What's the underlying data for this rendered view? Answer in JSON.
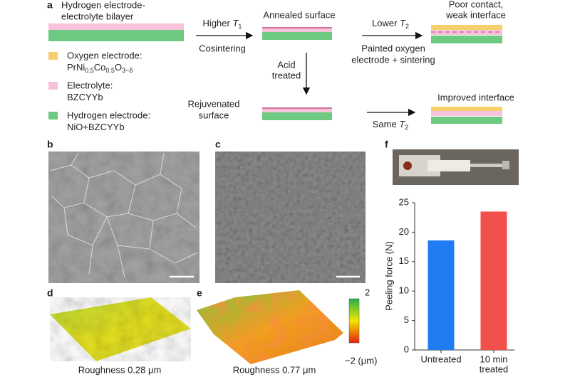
{
  "panel_labels": [
    "a",
    "b",
    "c",
    "d",
    "e",
    "f"
  ],
  "schematic": {
    "bilayer": [
      "Hydrogen electrode-",
      "electrolyte bilayer"
    ],
    "step1": {
      "above": [
        "Higher ",
        "T",
        "1"
      ],
      "below": "Cosintering"
    },
    "annealed": "Annealed surface",
    "step2": {
      "above": [
        "Lower ",
        "T",
        "2"
      ],
      "below": [
        "Painted oxygen",
        "electrode + sintering"
      ]
    },
    "poor": [
      "Poor contact,",
      "weak interface"
    ],
    "acid": [
      "Acid",
      "treated"
    ],
    "rejuvenated": [
      "Rejuvenated",
      "surface"
    ],
    "step3": [
      "Same ",
      "T",
      "2"
    ],
    "improved": "Improved interface"
  },
  "legend": [
    {
      "name": "Oxygen electrode:",
      "formula": [
        "PrNi",
        "0.5",
        "Co",
        "0.5",
        "O",
        "3−δ"
      ],
      "color": "#f6cf6d"
    },
    {
      "name": "Electrolyte:",
      "formula": [
        "BZCYYb"
      ],
      "color": "#f6c3da"
    },
    {
      "name": "Hydrogen electrode:",
      "formula": [
        "NiO+BZCYYb"
      ],
      "color": "#6dca80"
    }
  ],
  "colorbar": {
    "max": "2",
    "min": "−2 (μm)"
  },
  "roughness": [
    "Roughness 0.28 μm",
    "Roughness 0.77 μm"
  ],
  "chart_data": {
    "type": "bar",
    "y_label": "Peeling force (N)",
    "categories": [
      [
        "Untreated"
      ],
      [
        "10 min",
        "treated"
      ]
    ],
    "values": [
      18.6,
      23.5
    ],
    "colors": [
      "#1f7cf2",
      "#f2504a"
    ],
    "ylim": [
      0,
      25
    ],
    "yticks": [
      0,
      5,
      10,
      15,
      20,
      25
    ]
  }
}
